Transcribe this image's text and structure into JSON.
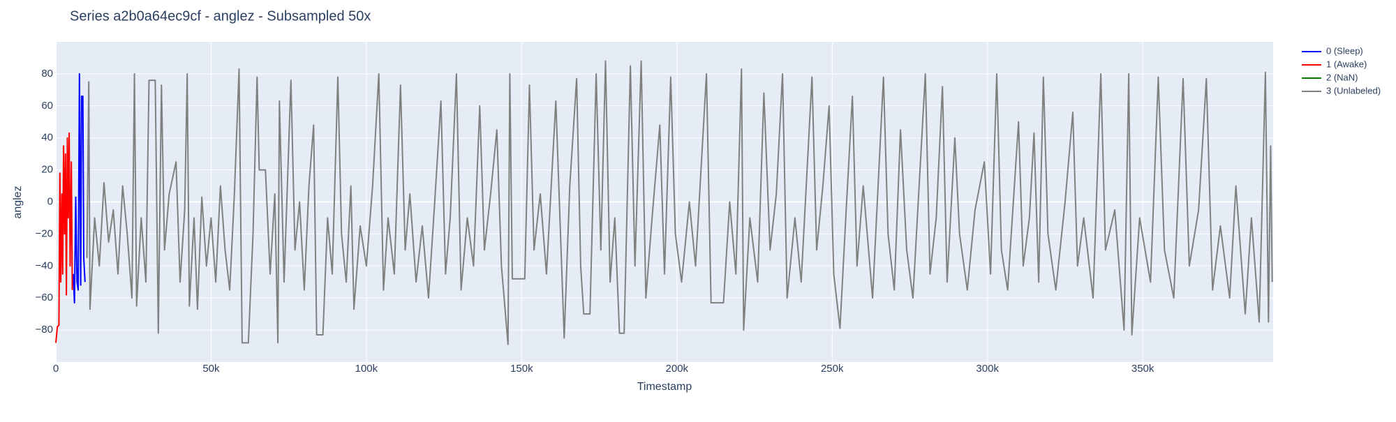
{
  "chart_data": {
    "type": "line",
    "title": "Series a2b0a64ec9cf - anglez - Subsampled 50x",
    "x_label": "Timestamp",
    "y_label": "anglez",
    "xlim": [
      0,
      392000
    ],
    "ylim": [
      -100,
      100
    ],
    "xticks": [
      0,
      {
        "value": 50000,
        "label": "50k"
      },
      {
        "value": 100000,
        "label": "100k"
      },
      {
        "value": 150000,
        "label": "150k"
      },
      {
        "value": 200000,
        "label": "200k"
      },
      {
        "value": 250000,
        "label": "250k"
      },
      {
        "value": 300000,
        "label": "300k"
      },
      {
        "value": 350000,
        "label": "350k"
      }
    ],
    "yticks": [
      {
        "value": -80,
        "label": "−80"
      },
      {
        "value": -60,
        "label": "−60"
      },
      {
        "value": -40,
        "label": "−40"
      },
      {
        "value": -20,
        "label": "−20"
      },
      0,
      20,
      40,
      60,
      80
    ],
    "grid": true,
    "series": [
      {
        "name": "0 (Sleep)",
        "color": "#0000ff",
        "x": [
          5600,
          6000,
          6400,
          6800,
          7200,
          7600,
          8000,
          8300,
          8700,
          9000,
          9400
        ],
        "values": [
          -45,
          -63,
          3,
          -50,
          -55,
          80,
          -52,
          66,
          66,
          -35,
          -50
        ]
      },
      {
        "name": "1 (Awake)",
        "color": "#ff0000",
        "x": [
          0,
          500,
          1000,
          1300,
          1600,
          1900,
          2200,
          2500,
          2800,
          3100,
          3400,
          3700,
          4000,
          4300,
          4600,
          5000,
          5300
        ],
        "values": [
          -88,
          -78,
          -77,
          18,
          -50,
          5,
          -45,
          35,
          -20,
          30,
          -58,
          40,
          -10,
          43,
          -40,
          25,
          -55
        ]
      },
      {
        "name": "2 (NaN)",
        "color": "#008000",
        "x": [],
        "values": []
      },
      {
        "name": "3 (Unlabeled)",
        "color": "#808080",
        "x": [
          10000,
          10600,
          11000,
          12500,
          14000,
          15500,
          17000,
          18500,
          20000,
          21500,
          23000,
          24500,
          25300,
          26000,
          27500,
          29000,
          30000,
          32000,
          33000,
          34000,
          35000,
          36500,
          38700,
          40000,
          41500,
          42300,
          43000,
          44500,
          45600,
          47000,
          48500,
          50000,
          51500,
          53000,
          54500,
          56000,
          57500,
          59000,
          60000,
          62000,
          63500,
          64800,
          65500,
          67500,
          69000,
          70500,
          71500,
          72000,
          73500,
          75700,
          77000,
          78500,
          80000,
          81500,
          83000,
          84000,
          86000,
          87500,
          89000,
          90800,
          92000,
          93500,
          95000,
          96000,
          98000,
          100000,
          102000,
          104000,
          105500,
          107000,
          109000,
          111000,
          112500,
          114000,
          116000,
          118000,
          120000,
          122000,
          124000,
          125500,
          127000,
          129000,
          130500,
          132500,
          134500,
          136500,
          138000,
          140000,
          142000,
          143500,
          145600,
          146200,
          147000,
          151000,
          152500,
          154000,
          156000,
          158000,
          161000,
          162500,
          163700,
          165500,
          167700,
          169000,
          170000,
          172000,
          174000,
          175500,
          177000,
          178500,
          180000,
          181500,
          183000,
          185000,
          186500,
          188500,
          190000,
          192000,
          194500,
          196000,
          198000,
          199500,
          201500,
          204000,
          206000,
          209500,
          211000,
          215000,
          217000,
          219000,
          220800,
          221500,
          223500,
          226000,
          228000,
          230000,
          232000,
          234000,
          235500,
          238000,
          240000,
          243500,
          245000,
          247000,
          249000,
          250500,
          252500,
          254500,
          256500,
          258000,
          260000,
          263000,
          266500,
          268000,
          270000,
          272000,
          274000,
          276000,
          278000,
          280000,
          281500,
          283500,
          285500,
          287000,
          289500,
          291000,
          293500,
          296000,
          299000,
          301000,
          303000,
          304500,
          306500,
          310000,
          311500,
          313500,
          315000,
          316500,
          318000,
          319500,
          322000,
          325000,
          327500,
          329000,
          331000,
          334000,
          336500,
          338000,
          341000,
          344000,
          345500,
          346500,
          349000,
          352500,
          355000,
          357000,
          360000,
          363000,
          365000,
          368000,
          370500,
          372500,
          375000,
          378000,
          380000,
          383000,
          385000,
          387500,
          389500,
          390500,
          391200,
          391700
        ],
        "values": [
          -35,
          75,
          -67,
          -10,
          -40,
          12,
          -25,
          -5,
          -45,
          10,
          -20,
          -60,
          80,
          -65,
          -10,
          -50,
          76,
          76,
          -82,
          73,
          -30,
          5,
          25,
          -50,
          -5,
          80,
          -65,
          -10,
          -67,
          3,
          -40,
          -10,
          -50,
          10,
          -30,
          -55,
          5,
          83,
          -88,
          -88,
          -20,
          78,
          20,
          20,
          -45,
          5,
          -88,
          63,
          -50,
          76,
          -30,
          0,
          -55,
          10,
          48,
          -83,
          -83,
          -10,
          -45,
          78,
          -20,
          -50,
          10,
          -67,
          -15,
          -40,
          10,
          80,
          -55,
          -10,
          -45,
          73,
          -30,
          5,
          -50,
          -15,
          -60,
          0,
          63,
          -45,
          -10,
          80,
          -55,
          -10,
          -40,
          60,
          -30,
          5,
          45,
          -40,
          -89,
          80,
          -48,
          -48,
          73,
          -30,
          5,
          -45,
          63,
          -20,
          -85,
          10,
          77,
          -40,
          -70,
          -70,
          80,
          -30,
          88,
          -50,
          -10,
          -82,
          -82,
          85,
          -40,
          88,
          -60,
          -10,
          48,
          -45,
          78,
          -20,
          -50,
          0,
          -40,
          80,
          -63,
          -63,
          0,
          -45,
          83,
          -80,
          -10,
          -50,
          68,
          -30,
          5,
          80,
          -60,
          -10,
          -50,
          78,
          -30,
          10,
          60,
          -45,
          -79,
          -5,
          66,
          -40,
          10,
          -60,
          78,
          -20,
          -55,
          45,
          -30,
          -60,
          10,
          80,
          -45,
          -10,
          72,
          -50,
          40,
          -20,
          -55,
          -5,
          25,
          -45,
          80,
          -30,
          -55,
          50,
          -40,
          -10,
          43,
          -50,
          78,
          -20,
          -55,
          0,
          56,
          -40,
          -10,
          -60,
          80,
          -30,
          -5,
          -80,
          80,
          -83,
          -10,
          -50,
          78,
          -30,
          -60,
          77,
          -40,
          -5,
          77,
          -55,
          -15,
          -60,
          10,
          -70,
          -10,
          -75,
          81,
          -75,
          35,
          -50
        ]
      }
    ]
  }
}
